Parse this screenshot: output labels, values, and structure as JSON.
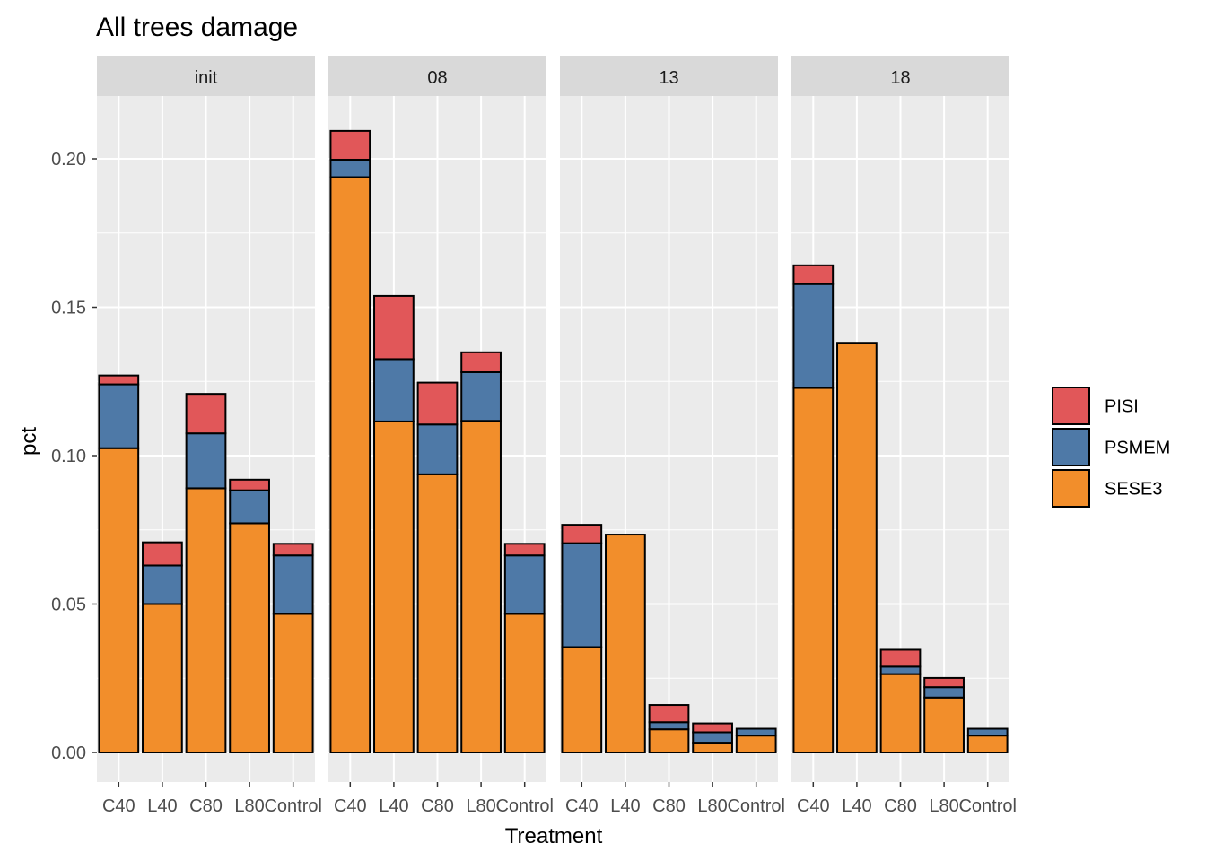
{
  "chart_data": {
    "type": "bar",
    "title": "All trees damage",
    "xlabel": "Treatment",
    "ylabel": "pct",
    "ylim": [
      -0.01,
      0.22
    ],
    "yticks": [
      "0.00",
      "0.05",
      "0.10",
      "0.15",
      "0.20"
    ],
    "ytick_values": [
      0,
      0.05,
      0.1,
      0.15,
      0.2
    ],
    "grid": true,
    "stacked": true,
    "legend_position": "right",
    "categories": [
      "C40",
      "L40",
      "C80",
      "L80",
      "Control"
    ],
    "legend": [
      {
        "name": "PISI",
        "color": "#E15759"
      },
      {
        "name": "PSMEM",
        "color": "#4E79A7"
      },
      {
        "name": "SESE3",
        "color": "#F28E2B"
      }
    ],
    "panels": [
      {
        "label": "init",
        "series": [
          {
            "name": "SESE3",
            "values": [
              0.1025,
              0.05,
              0.089,
              0.0772,
              0.0467
            ]
          },
          {
            "name": "PSMEM",
            "values": [
              0.0215,
              0.013,
              0.0185,
              0.0111,
              0.0197
            ]
          },
          {
            "name": "PISI",
            "values": [
              0.003,
              0.0078,
              0.0133,
              0.0036,
              0.0039
            ]
          }
        ]
      },
      {
        "label": "08",
        "series": [
          {
            "name": "SESE3",
            "values": [
              0.1938,
              0.1115,
              0.0937,
              0.1117,
              0.0467
            ]
          },
          {
            "name": "PSMEM",
            "values": [
              0.0059,
              0.021,
              0.0168,
              0.0164,
              0.0197
            ]
          },
          {
            "name": "PISI",
            "values": [
              0.0097,
              0.0213,
              0.0141,
              0.0067,
              0.0039
            ]
          }
        ]
      },
      {
        "label": "13",
        "series": [
          {
            "name": "SESE3",
            "values": [
              0.0355,
              0.0734,
              0.0078,
              0.0033,
              0.0057
            ]
          },
          {
            "name": "PSMEM",
            "values": [
              0.035,
              0.0,
              0.0024,
              0.0035,
              0.0023
            ]
          },
          {
            "name": "PISI",
            "values": [
              0.0062,
              0.0,
              0.0058,
              0.003,
              0.0
            ]
          }
        ]
      },
      {
        "label": "18",
        "series": [
          {
            "name": "SESE3",
            "values": [
              0.1228,
              0.138,
              0.0264,
              0.0185,
              0.0057
            ]
          },
          {
            "name": "PSMEM",
            "values": [
              0.035,
              0.0,
              0.0025,
              0.0035,
              0.0023
            ]
          },
          {
            "name": "PISI",
            "values": [
              0.0063,
              0.0,
              0.0057,
              0.0031,
              0.0
            ]
          }
        ]
      }
    ]
  }
}
